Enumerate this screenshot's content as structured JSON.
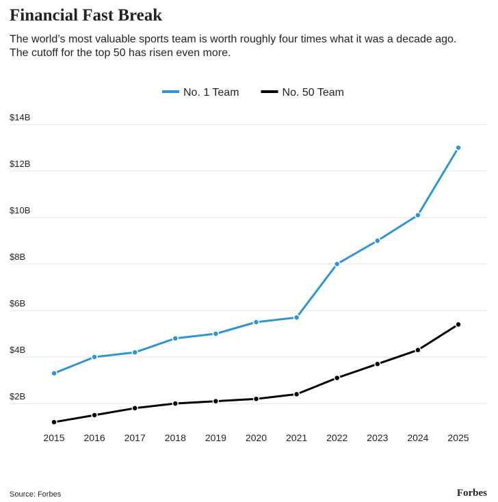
{
  "chart_data": {
    "type": "line",
    "title": "Financial Fast Break",
    "subtitle": [
      "The world’s most valuable sports team is worth roughly four times what it was a decade ago.",
      "The cutoff for the top 50 has risen even more."
    ],
    "source": "Source: Forbes",
    "logo": "Forbes",
    "x": [
      2015,
      2016,
      2017,
      2018,
      2019,
      2020,
      2021,
      2022,
      2023,
      2024,
      2025
    ],
    "xlim": [
      2015,
      2025
    ],
    "xticks": [
      2015,
      2016,
      2017,
      2018,
      2019,
      2020,
      2021,
      2022,
      2023,
      2024,
      2025
    ],
    "ylim": [
      1,
      14
    ],
    "yticks": [
      {
        "value": 2,
        "label": "$2B"
      },
      {
        "value": 4,
        "label": "$4B"
      },
      {
        "value": 6,
        "label": "$6B"
      },
      {
        "value": 8,
        "label": "$8B"
      },
      {
        "value": 10,
        "label": "$10B"
      },
      {
        "value": 12,
        "label": "$12B"
      },
      {
        "value": 14,
        "label": "$14B"
      }
    ],
    "grid": true,
    "legend": "top",
    "series": [
      {
        "name": "No. 1 Team",
        "color": "#2e95d3",
        "values": [
          3.3,
          4.0,
          4.2,
          4.8,
          5.0,
          5.5,
          5.7,
          8.0,
          9.0,
          10.1,
          13.0
        ]
      },
      {
        "name": "No. 50 Team",
        "color": "#000000",
        "values": [
          1.2,
          1.5,
          1.8,
          2.0,
          2.1,
          2.2,
          2.4,
          3.1,
          3.7,
          4.3,
          5.4
        ]
      }
    ]
  }
}
